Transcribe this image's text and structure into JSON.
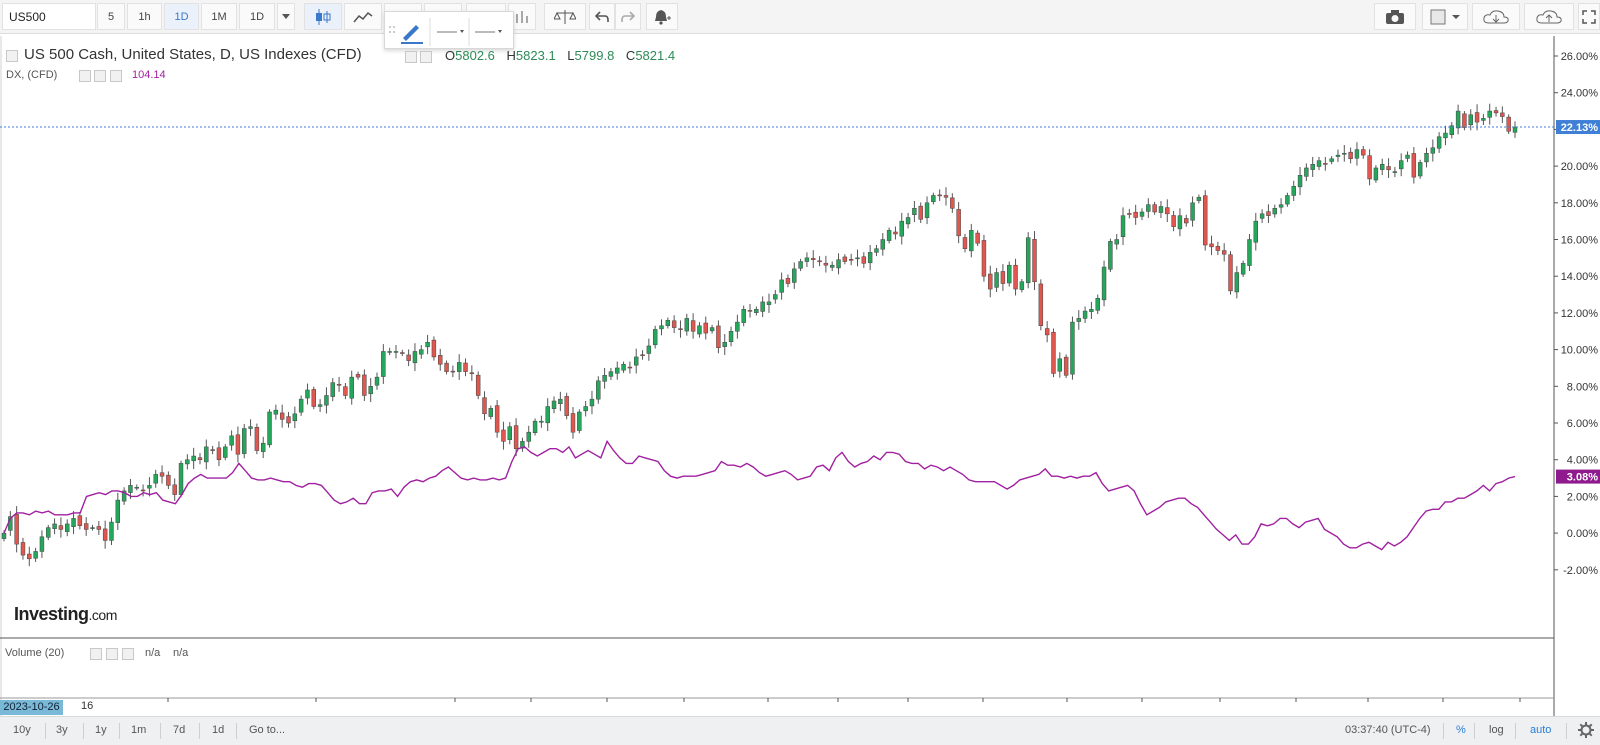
{
  "toolbar": {
    "symbol": "US500",
    "interval_buttons": [
      "5",
      "1h",
      "1D",
      "1M",
      "1D"
    ],
    "active_interval_index": 2,
    "icons": [
      "candles-icon",
      "line-chart-icon",
      "draw-icon",
      "indicators-icon",
      "compare-icon",
      "undo-icon",
      "redo-icon",
      "alert-icon",
      "camera-icon",
      "layout-icon",
      "cloud-load-icon",
      "cloud-save-icon",
      "fullscreen-icon"
    ]
  },
  "legend": {
    "main_title": "US 500 Cash, United States, D, US Indexes (CFD)",
    "ohlc": [
      {
        "label": "O",
        "value": "5802.6"
      },
      {
        "label": "H",
        "value": "5823.1"
      },
      {
        "label": "L",
        "value": "5799.8"
      },
      {
        "label": "C",
        "value": "5821.4"
      }
    ],
    "compare_name": "DX, (CFD)",
    "compare_value": "104.14",
    "volume_label": "Volume (20)",
    "volume_values": [
      "n/a",
      "n/a"
    ]
  },
  "logo": {
    "brand": "Investing",
    "suffix": ".com"
  },
  "chart_data": {
    "type": "line",
    "title": "US 500 Cash, United States, D, US Indexes (CFD)",
    "y_axis_ticks": [
      "26.00%",
      "24.00%",
      "22.00%",
      "20.00%",
      "18.00%",
      "16.00%",
      "14.00%",
      "12.00%",
      "10.00%",
      "8.00%",
      "6.00%",
      "4.00%",
      "2.00%",
      "0.00%",
      "-2.00%"
    ],
    "ylim": [
      -3.7,
      26.6
    ],
    "y_scale": "percent",
    "grid": false,
    "last_labels": {
      "us500": "22.13%",
      "dx": "3.08%"
    },
    "colors": {
      "up": "#26a65b",
      "down": "#e0574f",
      "dx_line": "#a020a0",
      "last_us500": "#3f7fd6",
      "last_dx": "#8e1a8e"
    },
    "x_labels": [
      "2023-10-26",
      "16"
    ],
    "series": [
      {
        "name": "US 500 Cash, United States, D, US Indexes (CFD)",
        "kind": "candlestick",
        "close_values": [
          0.0,
          0.9,
          -0.6,
          -1.2,
          -1.4,
          -1.0,
          -0.2,
          0.3,
          0.5,
          0.2,
          0.5,
          0.8,
          0.4,
          0.2,
          0.3,
          0.2,
          -0.4,
          0.6,
          1.8,
          2.3,
          2.6,
          2.5,
          2.3,
          2.6,
          3.2,
          3.1,
          2.6,
          2.1,
          3.8,
          4.0,
          4.2,
          4.0,
          4.7,
          4.5,
          4.0,
          4.7,
          5.3,
          4.3,
          5.7,
          5.8,
          4.5,
          4.9,
          6.6,
          6.7,
          6.2,
          6.0,
          6.5,
          7.3,
          7.8,
          6.9,
          7.0,
          7.5,
          8.2,
          8.1,
          7.5,
          8.5,
          8.5,
          7.5,
          8.0,
          8.5,
          9.9,
          9.9,
          9.9,
          9.8,
          9.4,
          9.9,
          10.0,
          10.4,
          9.6,
          9.2,
          8.8,
          8.8,
          9.3,
          8.8,
          8.7,
          7.5,
          6.5,
          6.8,
          5.5,
          5.0,
          5.8,
          4.6,
          5.0,
          5.5,
          6.1,
          6.1,
          6.9,
          7.2,
          7.3,
          6.4,
          5.5,
          6.6,
          6.9,
          7.3,
          8.3,
          8.6,
          8.8,
          9.0,
          9.2,
          9.0,
          9.6,
          9.7,
          10.2,
          11.1,
          11.3,
          11.6,
          11.2,
          11.1,
          11.7,
          11.0,
          11.3,
          10.9,
          11.2,
          10.1,
          10.4,
          11.0,
          11.5,
          12.2,
          12.1,
          12.2,
          12.6,
          12.6,
          13.0,
          13.8,
          13.6,
          14.4,
          14.8,
          15.0,
          14.9,
          14.8,
          14.6,
          14.6,
          14.9,
          14.8,
          14.9,
          15.0,
          14.7,
          15.3,
          15.5,
          16.0,
          16.5,
          16.3,
          17.0,
          17.2,
          17.7,
          17.1,
          18.0,
          18.4,
          18.4,
          18.3,
          17.7,
          16.2,
          15.5,
          16.5,
          15.8,
          14.0,
          13.3,
          14.2,
          13.6,
          14.6,
          13.3,
          13.7,
          16.1,
          13.7,
          11.3,
          10.8,
          8.7,
          9.5,
          8.6,
          11.5,
          11.7,
          12.1,
          12.2,
          12.8,
          14.5,
          15.9,
          16.0,
          17.3,
          17.4,
          17.2,
          17.5,
          17.9,
          17.5,
          17.8,
          17.4,
          16.7,
          17.3,
          16.9,
          18.0,
          18.3,
          15.7,
          15.6,
          15.4,
          15.2,
          13.2,
          14.2,
          14.7,
          16.0,
          17.0,
          17.4,
          17.3,
          17.7,
          17.9,
          18.4,
          18.9,
          19.5,
          19.9,
          20.1,
          20.3,
          20.1,
          20.4,
          20.6,
          20.7,
          20.4,
          20.9,
          20.6,
          19.3,
          19.9,
          20.1,
          19.8,
          19.7,
          20.3,
          20.6,
          19.4,
          20.2,
          20.7,
          21.0,
          21.6,
          21.8,
          22.2,
          23.0,
          22.1,
          22.8,
          22.4,
          22.6,
          23.0,
          22.9,
          22.7,
          21.9,
          22.13
        ]
      },
      {
        "name": "DX, (CFD)",
        "kind": "line",
        "values": [
          0.0,
          0.8,
          1.1,
          1.1,
          1.0,
          1.2,
          1.1,
          1.2,
          1.0,
          1.0,
          1.0,
          1.1,
          1.1,
          2.0,
          2.1,
          2.2,
          2.1,
          2.3,
          2.3,
          2.2,
          2.0,
          2.0,
          2.2,
          2.1,
          2.2,
          1.8,
          1.7,
          1.6,
          2.1,
          2.7,
          3.0,
          3.2,
          3.0,
          3.0,
          3.0,
          3.0,
          3.3,
          3.8,
          3.4,
          3.0,
          2.9,
          2.9,
          3.0,
          2.9,
          2.8,
          2.8,
          2.6,
          2.5,
          2.7,
          2.7,
          2.6,
          2.2,
          1.8,
          1.6,
          1.7,
          1.9,
          1.6,
          1.6,
          2.2,
          2.3,
          2.3,
          2.4,
          2.0,
          2.5,
          2.8,
          2.9,
          2.8,
          3.0,
          3.1,
          3.4,
          3.6,
          3.3,
          3.0,
          2.9,
          3.0,
          2.9,
          2.9,
          3.0,
          2.9,
          3.0,
          3.9,
          4.6,
          4.7,
          4.4,
          4.2,
          4.4,
          4.6,
          4.6,
          4.4,
          4.7,
          4.1,
          4.3,
          4.5,
          4.3,
          4.1,
          5.0,
          4.5,
          4.1,
          3.8,
          3.8,
          4.2,
          4.1,
          4.0,
          3.9,
          3.4,
          3.1,
          3.0,
          3.1,
          3.1,
          3.1,
          3.2,
          3.3,
          3.4,
          3.9,
          3.7,
          3.7,
          3.6,
          3.8,
          3.6,
          3.3,
          3.1,
          3.2,
          3.3,
          3.4,
          3.2,
          2.9,
          3.0,
          3.1,
          3.6,
          3.7,
          3.4,
          4.1,
          4.4,
          3.9,
          3.6,
          3.8,
          3.9,
          4.2,
          4.0,
          4.4,
          4.4,
          4.3,
          3.9,
          3.8,
          3.8,
          3.5,
          3.7,
          3.6,
          3.4,
          3.6,
          3.4,
          3.2,
          2.9,
          2.8,
          2.8,
          2.8,
          2.8,
          2.6,
          2.4,
          2.6,
          2.9,
          3.0,
          3.1,
          3.2,
          3.5,
          3.1,
          3.1,
          3.0,
          3.1,
          3.0,
          3.1,
          3.1,
          3.3,
          2.7,
          2.3,
          2.4,
          2.5,
          2.6,
          2.3,
          1.6,
          1.0,
          1.2,
          1.4,
          1.7,
          1.8,
          1.9,
          1.9,
          1.6,
          1.4,
          1.0,
          0.6,
          0.2,
          -0.1,
          -0.4,
          -0.1,
          -0.6,
          -0.6,
          -0.2,
          0.5,
          0.4,
          0.5,
          0.8,
          0.8,
          0.5,
          0.3,
          0.6,
          0.7,
          0.8,
          0.2,
          0.0,
          -0.2,
          -0.6,
          -0.8,
          -0.8,
          -0.6,
          -0.5,
          -0.7,
          -0.9,
          -0.5,
          -0.7,
          -0.5,
          -0.2,
          0.3,
          0.8,
          1.2,
          1.3,
          1.3,
          1.7,
          1.7,
          1.9,
          1.9,
          2.1,
          2.3,
          2.6,
          2.3,
          2.7,
          2.8,
          3.0,
          3.08
        ]
      }
    ]
  },
  "bottombar": {
    "ranges": [
      "10y",
      "3y",
      "1y",
      "1m",
      "7d",
      "1d"
    ],
    "goto": "Go to...",
    "clock": "03:37:40 (UTC-4)",
    "percent_toggle": "%",
    "log_toggle": "log",
    "auto_toggle": "auto"
  }
}
